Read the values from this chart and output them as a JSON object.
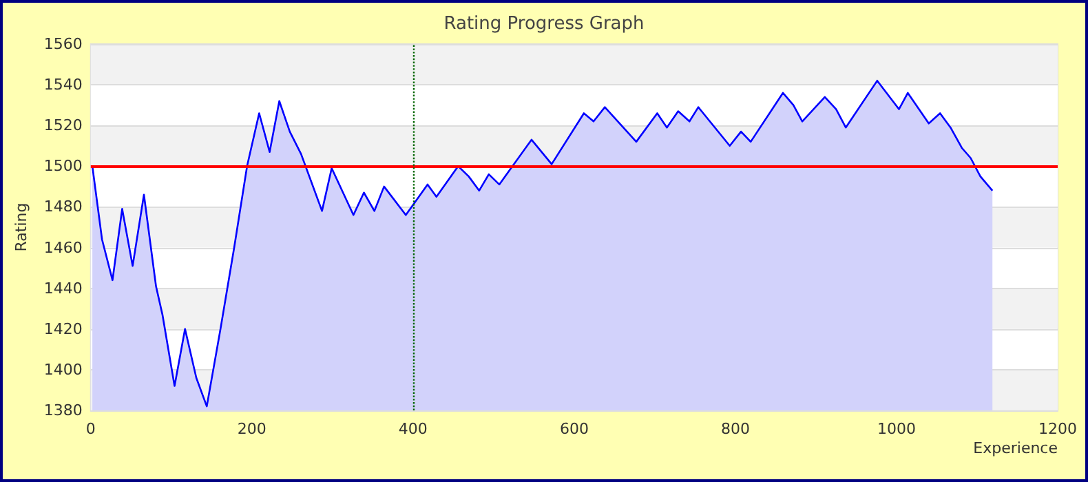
{
  "chart_data": {
    "type": "area",
    "title": "Rating Progress Graph",
    "xlabel": "Experience",
    "ylabel": "Rating",
    "x": [
      2,
      14,
      27,
      39,
      52,
      66,
      81,
      89,
      104,
      117,
      131,
      144,
      161,
      178,
      194,
      209,
      222,
      234,
      247,
      261,
      287,
      299,
      326,
      339,
      352,
      364,
      391,
      418,
      429,
      456,
      469,
      482,
      494,
      507,
      547,
      572,
      612,
      624,
      638,
      677,
      703,
      715,
      729,
      743,
      754,
      793,
      807,
      819,
      859,
      872,
      883,
      911,
      925,
      937,
      976,
      1003,
      1014,
      1040,
      1054,
      1067,
      1081,
      1092,
      1104,
      1119
    ],
    "series": [
      {
        "color": "#0000ff",
        "values": [
          1500,
          1464,
          1444,
          1479,
          1451,
          1486,
          1441,
          1427,
          1392,
          1420,
          1396,
          1382,
          1420,
          1460,
          1500,
          1526,
          1507,
          1532,
          1517,
          1506,
          1478,
          1499,
          1476,
          1487,
          1478,
          1490,
          1476,
          1491,
          1485,
          1500,
          1495,
          1488,
          1496,
          1491,
          1513,
          1501,
          1526,
          1522,
          1529,
          1512,
          1526,
          1519,
          1527,
          1522,
          1529,
          1510,
          1517,
          1512,
          1536,
          1530,
          1522,
          1534,
          1528,
          1519,
          1542,
          1528,
          1536,
          1521,
          1526,
          1519,
          1509,
          1504,
          1495,
          1488
        ]
      }
    ],
    "xlim": [
      0,
      1200
    ],
    "xticks": [
      0,
      200,
      400,
      600,
      800,
      1000,
      1200
    ],
    "ylim": [
      1380,
      1560
    ],
    "yticks": [
      1380,
      1400,
      1420,
      1440,
      1460,
      1480,
      1500,
      1520,
      1540,
      1560
    ],
    "grid": "y",
    "marker": "none",
    "line_style": "solid",
    "ref_lines": [
      {
        "axis": "y",
        "value": 1500,
        "color": "#ff0000",
        "line_style": "solid"
      },
      {
        "axis": "x",
        "value": 400,
        "color": "#006600",
        "line_style": "dotted"
      }
    ]
  }
}
